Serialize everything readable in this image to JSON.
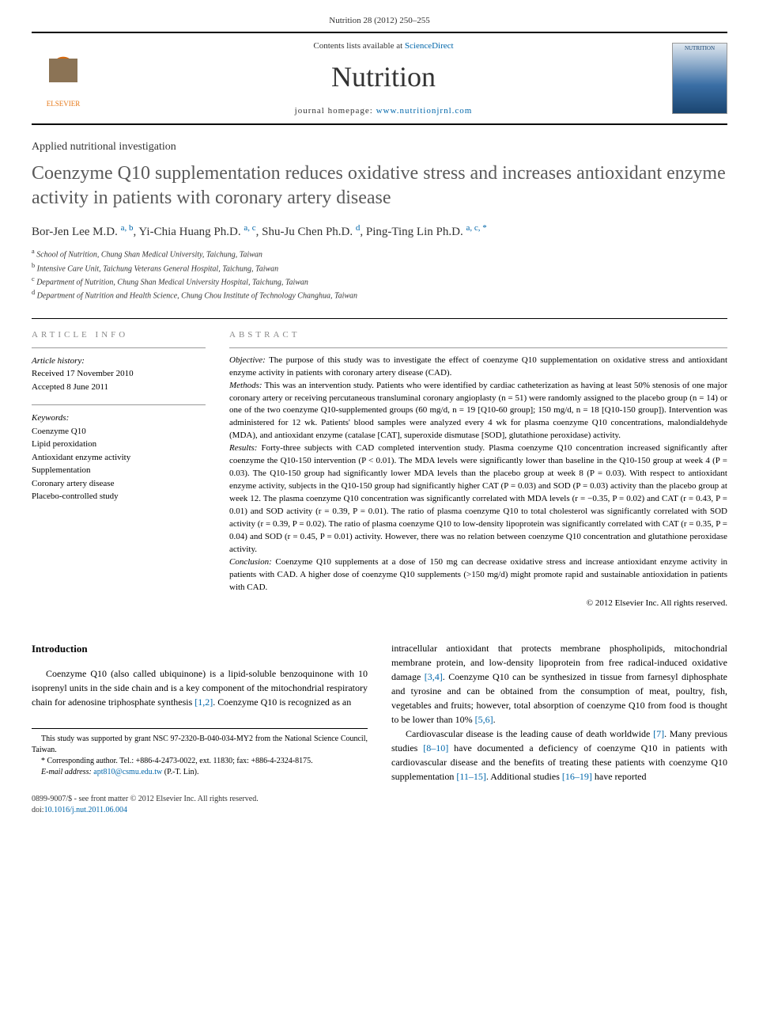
{
  "header": {
    "citation": "Nutrition 28 (2012) 250–255",
    "contents_prefix": "Contents lists available at ",
    "contents_link": "ScienceDirect",
    "journal_name": "Nutrition",
    "homepage_prefix": "journal homepage: ",
    "homepage_link": "www.nutritionjrnl.com",
    "publisher_label": "ELSEVIER",
    "cover_label": "NUTRITION"
  },
  "article": {
    "type": "Applied nutritional investigation",
    "title": "Coenzyme Q10 supplementation reduces oxidative stress and increases antioxidant enzyme activity in patients with coronary artery disease",
    "authors_html": "Bor-Jen Lee M.D. <sup>a, b</sup>, Yi-Chia Huang Ph.D. <sup>a, c</sup>, Shu-Ju Chen Ph.D. <sup>d</sup>, Ping-Ting Lin Ph.D. <sup>a, c, *</sup>",
    "affiliations": [
      {
        "mark": "a",
        "text": "School of Nutrition, Chung Shan Medical University, Taichung, Taiwan"
      },
      {
        "mark": "b",
        "text": "Intensive Care Unit, Taichung Veterans General Hospital, Taichung, Taiwan"
      },
      {
        "mark": "c",
        "text": "Department of Nutrition, Chung Shan Medical University Hospital, Taichung, Taiwan"
      },
      {
        "mark": "d",
        "text": "Department of Nutrition and Health Science, Chung Chou Institute of Technology Changhua, Taiwan"
      }
    ]
  },
  "info": {
    "heading": "ARTICLE INFO",
    "history_label": "Article history:",
    "received": "Received 17 November 2010",
    "accepted": "Accepted 8 June 2011",
    "keywords_label": "Keywords:",
    "keywords": [
      "Coenzyme Q10",
      "Lipid peroxidation",
      "Antioxidant enzyme activity",
      "Supplementation",
      "Coronary artery disease",
      "Placebo-controlled study"
    ]
  },
  "abstract": {
    "heading": "ABSTRACT",
    "objective_label": "Objective:",
    "objective": " The purpose of this study was to investigate the effect of coenzyme Q10 supplementation on oxidative stress and antioxidant enzyme activity in patients with coronary artery disease (CAD).",
    "methods_label": "Methods:",
    "methods": " This was an intervention study. Patients who were identified by cardiac catheterization as having at least 50% stenosis of one major coronary artery or receiving percutaneous transluminal coronary angioplasty (n = 51) were randomly assigned to the placebo group (n = 14) or one of the two coenzyme Q10-supplemented groups (60 mg/d, n = 19 [Q10-60 group]; 150 mg/d, n = 18 [Q10-150 group]). Intervention was administered for 12 wk. Patients' blood samples were analyzed every 4 wk for plasma coenzyme Q10 concentrations, malondialdehyde (MDA), and antioxidant enzyme (catalase [CAT], superoxide dismutase [SOD], glutathione peroxidase) activity.",
    "results_label": "Results:",
    "results": " Forty-three subjects with CAD completed intervention study. Plasma coenzyme Q10 concentration increased significantly after coenzyme the Q10-150 intervention (P < 0.01). The MDA levels were significantly lower than baseline in the Q10-150 group at week 4 (P = 0.03). The Q10-150 group had significantly lower MDA levels than the placebo group at week 8 (P = 0.03). With respect to antioxidant enzyme activity, subjects in the Q10-150 group had significantly higher CAT (P = 0.03) and SOD (P = 0.03) activity than the placebo group at week 12. The plasma coenzyme Q10 concentration was significantly correlated with MDA levels (r = −0.35, P = 0.02) and CAT (r = 0.43, P = 0.01) and SOD activity (r = 0.39, P = 0.01). The ratio of plasma coenzyme Q10 to total cholesterol was significantly correlated with SOD activity (r = 0.39, P = 0.02). The ratio of plasma coenzyme Q10 to low-density lipoprotein was significantly correlated with CAT (r = 0.35, P = 0.04) and SOD (r = 0.45, P = 0.01) activity. However, there was no relation between coenzyme Q10 concentration and glutathione peroxidase activity.",
    "conclusion_label": "Conclusion:",
    "conclusion": " Coenzyme Q10 supplements at a dose of 150 mg can decrease oxidative stress and increase antioxidant enzyme activity in patients with CAD. A higher dose of coenzyme Q10 supplements (>150 mg/d) might promote rapid and sustainable antioxidation in patients with CAD.",
    "copyright": "© 2012 Elsevier Inc. All rights reserved."
  },
  "body": {
    "intro_heading": "Introduction",
    "p1_a": "Coenzyme Q10 (also called ubiquinone) is a lipid-soluble benzoquinone with 10 isoprenyl units in the side chain and is a key component of the mitochondrial respiratory chain for adenosine triphosphate synthesis ",
    "p1_ref1": "[1,2]",
    "p1_b": ". Coenzyme Q10 is recognized as an",
    "p2_a": "intracellular antioxidant that protects membrane phospholipids, mitochondrial membrane protein, and low-density lipoprotein from free radical-induced oxidative damage ",
    "p2_ref1": "[3,4]",
    "p2_b": ". Coenzyme Q10 can be synthesized in tissue from farnesyl diphosphate and tyrosine and can be obtained from the consumption of meat, poultry, fish, vegetables and fruits; however, total absorption of coenzyme Q10 from food is thought to be lower than 10% ",
    "p2_ref2": "[5,6]",
    "p2_c": ".",
    "p3_a": "Cardiovascular disease is the leading cause of death worldwide ",
    "p3_ref1": "[7]",
    "p3_b": ". Many previous studies ",
    "p3_ref2": "[8–10]",
    "p3_c": " have documented a deficiency of coenzyme Q10 in patients with cardiovascular disease and the benefits of treating these patients with coenzyme Q10 supplementation ",
    "p3_ref3": "[11–15]",
    "p3_d": ". Additional studies ",
    "p3_ref4": "[16–19]",
    "p3_e": " have reported"
  },
  "footnotes": {
    "funding": "This study was supported by grant NSC 97-2320-B-040-034-MY2 from the National Science Council, Taiwan.",
    "corr_label": "* Corresponding author. Tel.: +886-4-2473-0022, ext. 11830; fax: +886-4-2324-8175.",
    "email_label": "E-mail address:",
    "email": "apt810@csmu.edu.tw",
    "email_who": " (P.-T. Lin)."
  },
  "bottom": {
    "issn": "0899-9007/$ - see front matter © 2012 Elsevier Inc. All rights reserved.",
    "doi_label": "doi:",
    "doi": "10.1016/j.nut.2011.06.004"
  },
  "colors": {
    "link": "#0066aa",
    "text": "#000000",
    "grey": "#5a5a5a",
    "orange": "#e67817"
  }
}
